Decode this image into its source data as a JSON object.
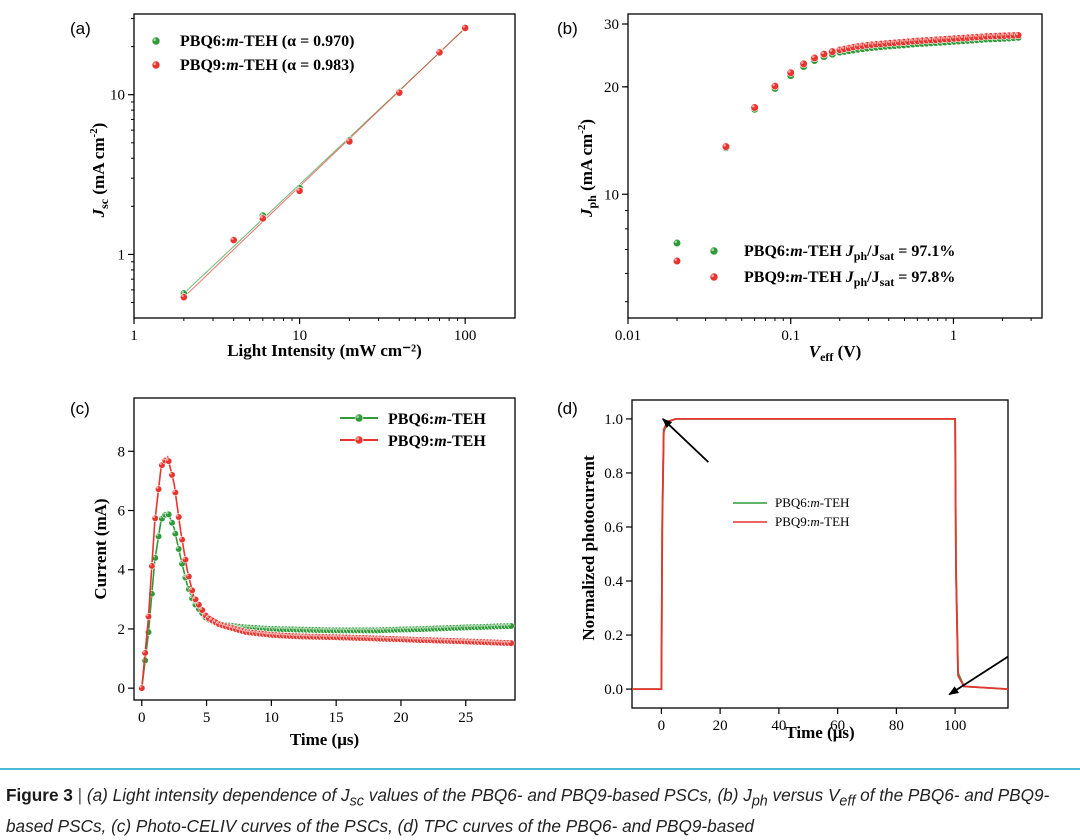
{
  "colors": {
    "green": "#2e9a38",
    "red": "#e8342e",
    "line": "#8a7a5a",
    "axis": "#000000",
    "caption_rule": "#4fb7d8"
  },
  "chart_data": [
    {
      "id": "a",
      "panel_label": "(a)",
      "type": "scatter",
      "xscale": "log",
      "yscale": "log",
      "xlim": [
        1,
        200
      ],
      "ylim": [
        0.4,
        32
      ],
      "xticks": [
        1,
        10,
        100
      ],
      "xtick_labels": [
        "1",
        "10",
        "100"
      ],
      "yticks": [
        1,
        10
      ],
      "ytick_labels": [
        "1",
        "10"
      ],
      "xlabel": "Light Intensity (mW cm⁻²)",
      "ylabel": {
        "main": "J",
        "sub": "sc",
        "rest": " (mA cm",
        "sup": "-2",
        "end": ")"
      },
      "series": [
        {
          "name": "PBQ6:m-TEH",
          "alpha": "0.970",
          "color": "green",
          "x": [
            2,
            4,
            6,
            10,
            20,
            40,
            70,
            100
          ],
          "y": [
            0.57,
            1.23,
            1.75,
            2.6,
            5.2,
            10.4,
            18.6,
            26.0
          ]
        },
        {
          "name": "PBQ9:m-TEH",
          "alpha": "0.983",
          "color": "red",
          "x": [
            2,
            4,
            6,
            10,
            20,
            40,
            70,
            100
          ],
          "y": [
            0.54,
            1.23,
            1.68,
            2.5,
            5.1,
            10.3,
            18.4,
            26.2
          ]
        }
      ],
      "legend": [
        {
          "label_a": "PBQ6:",
          "label_b": "m",
          "label_c": "-TEH  (",
          "label_d": "α",
          "label_e": " = 0.970)"
        },
        {
          "label_a": "PBQ9:",
          "label_b": "m",
          "label_c": "-TEH  (",
          "label_d": "α",
          "label_e": " = 0.983)"
        }
      ]
    },
    {
      "id": "b",
      "panel_label": "(b)",
      "type": "scatter",
      "xscale": "log",
      "yscale": "log",
      "xlim": [
        0.01,
        3.5
      ],
      "ylim": [
        4.5,
        32
      ],
      "xticks": [
        0.01,
        0.1,
        1
      ],
      "xtick_labels": [
        "0.01",
        "0.1",
        "1"
      ],
      "yticks": [
        10,
        20,
        30
      ],
      "ytick_labels": [
        "10",
        "20",
        "30"
      ],
      "xlabel": {
        "main": "V",
        "sub": "eff",
        "rest": "  (V)"
      },
      "ylabel": {
        "main": "J",
        "sub": "ph",
        "rest": " (mA cm",
        "sup": "-2",
        "end": ")"
      },
      "series": [
        {
          "name": "PBQ6:m-TEH",
          "color": "green",
          "x": [
            0.02,
            0.04,
            0.06,
            0.08,
            0.1,
            0.12,
            0.14,
            0.16,
            0.18,
            0.2,
            0.25,
            0.3,
            0.4,
            0.5,
            0.6,
            0.8,
            1.0,
            1.3,
            1.6,
            2.0,
            2.5
          ],
          "y": [
            7.3,
            13.5,
            17.3,
            19.8,
            21.5,
            22.8,
            23.7,
            24.3,
            24.7,
            25.0,
            25.4,
            25.7,
            26.0,
            26.2,
            26.4,
            26.6,
            26.8,
            27.0,
            27.2,
            27.3,
            27.5
          ]
        },
        {
          "name": "PBQ9:m-TEH",
          "color": "red",
          "x": [
            0.02,
            0.04,
            0.06,
            0.08,
            0.1,
            0.12,
            0.14,
            0.16,
            0.18,
            0.2,
            0.25,
            0.3,
            0.4,
            0.5,
            0.6,
            0.8,
            1.0,
            1.3,
            1.6,
            2.0,
            2.5
          ],
          "y": [
            6.5,
            13.6,
            17.5,
            20.1,
            21.9,
            23.2,
            24.1,
            24.7,
            25.1,
            25.4,
            25.9,
            26.2,
            26.5,
            26.7,
            26.9,
            27.1,
            27.3,
            27.5,
            27.7,
            27.8,
            27.9
          ]
        }
      ],
      "legend": [
        {
          "label_a": "PBQ6:",
          "label_b": "m",
          "label_c": "-TEH  ",
          "ratio_main": "J",
          "ratio_sub1": "ph",
          "ratio_mid": "/J",
          "ratio_sub2": "sat",
          "value": " = 97.1%"
        },
        {
          "label_a": "PBQ9:",
          "label_b": "m",
          "label_c": "-TEH  ",
          "ratio_main": "J",
          "ratio_sub1": "ph",
          "ratio_mid": "/J",
          "ratio_sub2": "sat",
          "value": " = 97.8%"
        }
      ]
    },
    {
      "id": "c",
      "panel_label": "(c)",
      "type": "line",
      "xlim": [
        -0.6,
        28.8
      ],
      "ylim": [
        -0.4,
        9.8
      ],
      "xticks": [
        0,
        5,
        10,
        15,
        20,
        25
      ],
      "xtick_labels": [
        "0",
        "5",
        "10",
        "15",
        "20",
        "25"
      ],
      "yticks": [
        0,
        2,
        4,
        6,
        8
      ],
      "ytick_labels": [
        "0",
        "2",
        "4",
        "6",
        "8"
      ],
      "xlabel": "Time (μs)",
      "ylabel": "Current (mA)",
      "series": [
        {
          "name": "PBQ6:m-TEH",
          "color": "green",
          "x": [
            0,
            0.5,
            1,
            1.5,
            2,
            2.5,
            3,
            3.5,
            4,
            5,
            6,
            8,
            10,
            12,
            15,
            18,
            20,
            22,
            25,
            28.5
          ],
          "y": [
            0,
            1.8,
            4.3,
            5.7,
            5.95,
            5.4,
            4.4,
            3.5,
            2.9,
            2.35,
            2.15,
            2.05,
            2.0,
            1.98,
            1.95,
            1.95,
            1.98,
            2.0,
            2.05,
            2.1
          ]
        },
        {
          "name": "PBQ9:m-TEH",
          "color": "red",
          "x": [
            0,
            0.5,
            1,
            1.5,
            2,
            2.5,
            3,
            3.5,
            4,
            5,
            6,
            8,
            10,
            12,
            15,
            18,
            20,
            22,
            25,
            28.5
          ],
          "y": [
            0,
            2.3,
            5.6,
            7.5,
            7.8,
            6.9,
            5.3,
            4.0,
            3.1,
            2.4,
            2.15,
            1.9,
            1.8,
            1.75,
            1.72,
            1.68,
            1.65,
            1.62,
            1.58,
            1.52
          ]
        }
      ],
      "legend": [
        {
          "label_a": "PBQ6:",
          "label_b": "m",
          "label_c": "-TEH"
        },
        {
          "label_a": "PBQ9:",
          "label_b": "m",
          "label_c": "-TEH"
        }
      ]
    },
    {
      "id": "d",
      "panel_label": "(d)",
      "type": "line",
      "xlim": [
        -10,
        118
      ],
      "ylim": [
        -0.07,
        1.07
      ],
      "xticks": [
        0,
        20,
        40,
        60,
        80,
        100
      ],
      "xtick_labels": [
        "0",
        "20",
        "40",
        "60",
        "80",
        "100"
      ],
      "yticks": [
        0,
        0.2,
        0.4,
        0.6,
        0.8,
        1.0
      ],
      "ytick_labels": [
        "0.0",
        "0.2",
        "0.4",
        "0.6",
        "0.8",
        "1.0"
      ],
      "xlabel": "Time (μs)",
      "ylabel": "Normalized photocurrent",
      "series": [
        {
          "name": "PBQ6:m-TEH",
          "color": "green",
          "x": [
            -10,
            0,
            0.3,
            0.8,
            2,
            5,
            100,
            100.3,
            101,
            103,
            118
          ],
          "y": [
            0,
            0,
            0.6,
            0.95,
            0.99,
            1.0,
            1.0,
            0.45,
            0.06,
            0.01,
            0
          ]
        },
        {
          "name": "PBQ9:m-TEH",
          "color": "red",
          "x": [
            -10,
            0,
            0.3,
            0.8,
            2,
            5,
            100,
            100.3,
            101,
            103,
            118
          ],
          "y": [
            0,
            0,
            0.62,
            0.96,
            0.99,
            1.0,
            1.0,
            0.43,
            0.05,
            0.01,
            0
          ]
        }
      ],
      "legend": [
        {
          "label_a": "PBQ6:",
          "label_b": "m",
          "label_c": "-TEH"
        },
        {
          "label_a": "PBQ9:",
          "label_b": "m",
          "label_c": "-TEH"
        }
      ],
      "annotations": [
        {
          "type": "arrow",
          "from": [
            16,
            0.84
          ],
          "to": [
            0.5,
            1.0
          ]
        },
        {
          "type": "arrow",
          "from": [
            118,
            0.12
          ],
          "to": [
            98,
            -0.02
          ]
        }
      ]
    }
  ],
  "caption": {
    "fig_label": "Figure 3",
    "separator": " | ",
    "p1": "(a) Light intensity dependence of J",
    "s1": "sc",
    "p2": " values of the PBQ6- and PBQ9-based PSCs, (b) J",
    "s2": "ph",
    "p3": " versus V",
    "s3": "eff",
    "p4": " of the PBQ6- and PBQ9-based PSCs, (c) Photo-CELIV curves of the PSCs, (d) TPC curves of the PBQ6- and PBQ9-based"
  }
}
